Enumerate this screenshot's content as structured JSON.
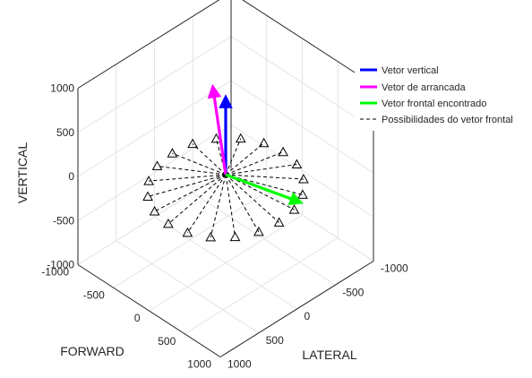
{
  "chart_data": {
    "type": "3d-vector",
    "axes": {
      "vertical": {
        "label": "VERTICAL",
        "range": [
          -1000,
          1000
        ],
        "ticks": [
          -1000,
          -500,
          0,
          500,
          1000
        ],
        "tick_labels": [
          "-1000",
          "-500",
          "0",
          "500",
          "1000"
        ]
      },
      "forward": {
        "label": "FORWARD",
        "range": [
          -1000,
          1000
        ],
        "ticks": [
          -1000,
          -500,
          0,
          500,
          1000
        ],
        "tick_labels": [
          "-1000",
          "-500",
          "0",
          "500",
          "1000"
        ]
      },
      "lateral": {
        "label": "LATERAL",
        "range": [
          -1000,
          1000
        ],
        "ticks": [
          -1000,
          -500,
          0,
          500,
          1000
        ],
        "tick_labels": [
          "-1000",
          "-500",
          "0",
          "500",
          "1000"
        ]
      }
    },
    "grid": true,
    "legend": {
      "position": "right",
      "entries": [
        {
          "label": "Vetor vertical",
          "color": "#0000ff",
          "style": "solid"
        },
        {
          "label": "Vetor de arrancada",
          "color": "#ff00ff",
          "style": "solid"
        },
        {
          "label": "Vetor frontal encontrado",
          "color": "#00ff00",
          "style": "solid"
        },
        {
          "label": "Possibilidades do vetor frontal",
          "color": "#000000",
          "style": "dashed"
        }
      ]
    },
    "origin": [
      0,
      0,
      0
    ],
    "vectors": [
      {
        "name": "Vetor vertical",
        "color": "#0000ff",
        "end": {
          "forward": 0,
          "lateral": 0,
          "vertical": 900
        }
      },
      {
        "name": "Vetor de arrancada",
        "color": "#ff00ff",
        "end": {
          "forward": -400,
          "lateral": -200,
          "vertical": 700
        }
      },
      {
        "name": "Vetor frontal encontrado",
        "color": "#00ff00",
        "end": {
          "forward": 650,
          "lateral": -400,
          "vertical": -200
        }
      }
    ],
    "possibilities": {
      "marker": "triangle",
      "color": "#000000",
      "count": 20,
      "radius": 750,
      "elevation_vertical": -150,
      "line_style": "dashed"
    }
  }
}
